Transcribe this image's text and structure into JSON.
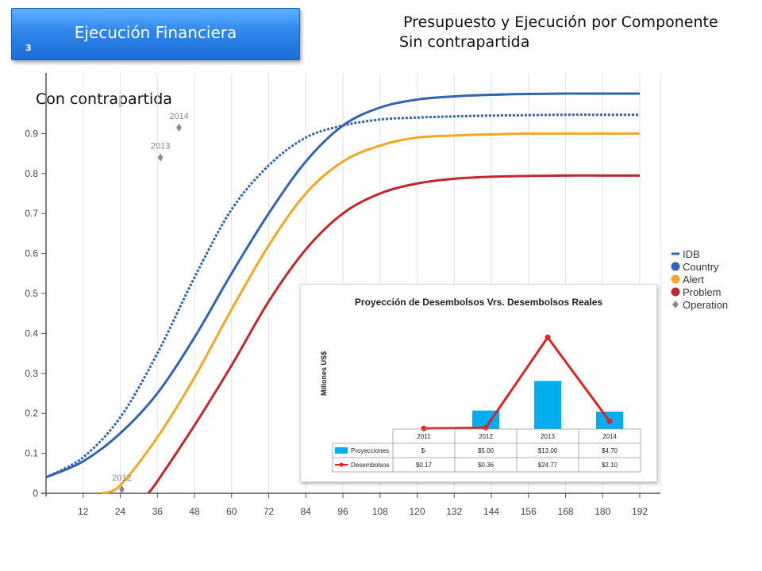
{
  "slide": {
    "number": "3",
    "banner_title": "Ejecución Financiera",
    "heading_line1": "Presupuesto y Ejecución por Componente",
    "heading_line2": "Sin contrapartida",
    "label_con": "Con contrapartida"
  },
  "colors": {
    "idb": "#2f64b3",
    "country": "#2f64b3",
    "alert": "#f7a623",
    "problem": "#c1272d",
    "operation": "#8c8c8c",
    "projection_bar": "#00aeef",
    "disbursement": "#e02020"
  },
  "chart_data": [
    {
      "type": "line",
      "xlim": [
        0,
        192
      ],
      "ylim": [
        0,
        1
      ],
      "x_ticks": [
        "12",
        "24",
        "36",
        "48",
        "60",
        "72",
        "84",
        "96",
        "108",
        "120",
        "132",
        "144",
        "156",
        "168",
        "180",
        "192"
      ],
      "y_ticks": [
        "0",
        "0.1",
        "0.2",
        "0.3",
        "0.4",
        "0.5",
        "0.6",
        "0.7",
        "0.8",
        "0.9"
      ],
      "grid": "vertical",
      "legend_position": "right",
      "legend": [
        "IDB",
        "Country",
        "Alert",
        "Problem",
        "Operation"
      ],
      "series": [
        {
          "name": "IDB",
          "style": "dotted",
          "x": [
            0,
            12,
            24,
            36,
            48,
            60,
            72,
            84,
            96,
            108,
            120,
            132,
            144,
            156,
            168,
            180,
            192
          ],
          "y": [
            0.04,
            0.09,
            0.19,
            0.35,
            0.54,
            0.71,
            0.82,
            0.89,
            0.92,
            0.935,
            0.94,
            0.943,
            0.945,
            0.946,
            0.947,
            0.947,
            0.947
          ]
        },
        {
          "name": "Country",
          "style": "solid",
          "x": [
            0,
            12,
            24,
            36,
            48,
            60,
            72,
            84,
            96,
            108,
            120,
            132,
            144,
            156,
            168,
            180,
            192
          ],
          "y": [
            0.04,
            0.08,
            0.15,
            0.25,
            0.39,
            0.55,
            0.7,
            0.83,
            0.92,
            0.965,
            0.985,
            0.993,
            0.997,
            0.999,
            1.0,
            1.0,
            1.0
          ]
        },
        {
          "name": "Alert",
          "style": "solid",
          "x": [
            18,
            24,
            36,
            48,
            60,
            72,
            84,
            96,
            108,
            120,
            132,
            144,
            156,
            168,
            180,
            192
          ],
          "y": [
            0.0,
            0.02,
            0.14,
            0.29,
            0.46,
            0.62,
            0.75,
            0.83,
            0.87,
            0.89,
            0.895,
            0.898,
            0.9,
            0.9,
            0.9,
            0.9
          ]
        },
        {
          "name": "Problem",
          "style": "solid",
          "x": [
            33,
            36,
            48,
            60,
            72,
            84,
            96,
            108,
            120,
            132,
            144,
            156,
            168,
            180,
            192
          ],
          "y": [
            0.0,
            0.03,
            0.17,
            0.32,
            0.48,
            0.61,
            0.7,
            0.75,
            0.775,
            0.787,
            0.792,
            0.794,
            0.795,
            0.795,
            0.795
          ]
        }
      ],
      "operation_points": [
        {
          "label": "2012",
          "x": 24.5,
          "y": 0.01
        },
        {
          "label": "2013",
          "x": 37,
          "y": 0.84
        },
        {
          "label": "2014",
          "x": 43,
          "y": 0.915
        }
      ]
    },
    {
      "type": "bar",
      "title": "Proyección de Desembolsos Vrs. Desembolsos Reales",
      "ylabel": "Millones US$",
      "categories": [
        "2011",
        "2012",
        "2013",
        "2014"
      ],
      "ylim": [
        0,
        30
      ],
      "series": [
        {
          "name": "Proyecciones",
          "type": "bar",
          "values": [
            0,
            5.0,
            13.0,
            4.7
          ],
          "labels": [
            "$-",
            "$5.00",
            "$13.00",
            "$4.70"
          ]
        },
        {
          "name": "Desembolsos",
          "type": "line",
          "values": [
            0.17,
            0.36,
            24.77,
            2.1
          ],
          "labels": [
            "$0.17",
            "$0.36",
            "$24.77",
            "$2.10"
          ]
        }
      ]
    }
  ]
}
